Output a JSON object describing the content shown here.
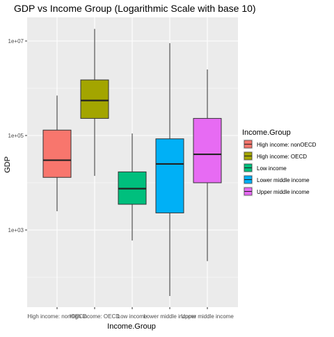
{
  "chart_data": {
    "type": "box",
    "title": "GDP vs Income Group (Logarithmic Scale with base 10)",
    "xlabel": "Income.Group",
    "ylabel": "GDP",
    "y_scale": "log10",
    "ylim": [
      10,
      100000000
    ],
    "y_ticks": [
      {
        "value": 1000,
        "label": "1e+03"
      },
      {
        "value": 100000,
        "label": "1e+05"
      },
      {
        "value": 10000000,
        "label": "1e+07"
      }
    ],
    "grid": true,
    "legend": {
      "title": "Income.Group",
      "placement": "right"
    },
    "categories": [
      "High income: nonOECD",
      "High income: OECD",
      "Low income",
      "Lower middle income",
      "Upper middle income"
    ],
    "boxes": [
      {
        "name": "High income: nonOECD",
        "color": "#F8766D",
        "min": 2500,
        "q1": 13000,
        "median": 30000,
        "q3": 130000,
        "max": 700000
      },
      {
        "name": "High income: OECD",
        "color": "#A3A500",
        "min": 14000,
        "q1": 230000,
        "median": 550000,
        "q3": 1500000,
        "max": 18000000
      },
      {
        "name": "Low income",
        "color": "#00BF7D",
        "min": 600,
        "q1": 3500,
        "median": 7500,
        "q3": 17000,
        "max": 110000
      },
      {
        "name": "Lower middle income",
        "color": "#00B0F6",
        "min": 40,
        "q1": 2300,
        "median": 25000,
        "q3": 85000,
        "max": 9000000
      },
      {
        "name": "Upper middle income",
        "color": "#E76BF3",
        "min": 220,
        "q1": 10000,
        "median": 40000,
        "q3": 230000,
        "max": 2500000
      }
    ]
  }
}
